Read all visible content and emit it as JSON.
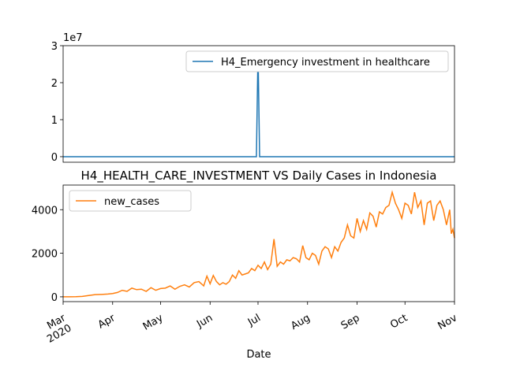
{
  "chart_data": [
    {
      "type": "line",
      "y_offset_label": "1e7",
      "x": [
        0,
        119,
        120,
        121,
        122,
        123,
        124,
        245
      ],
      "series": [
        {
          "name": "H4_Emergency investment in healthcare",
          "color": "#1f77b4",
          "values": [
            0,
            0,
            0,
            0,
            2.85,
            0,
            0,
            0
          ]
        }
      ],
      "xlim": [
        0,
        245
      ],
      "ylim": [
        -0.15,
        3.0
      ],
      "yticks": [
        0,
        1,
        2,
        3
      ],
      "legend": "upper right"
    },
    {
      "type": "line",
      "title": "H4_HEALTH_CARE_INVESTMENT VS Daily Cases in Indonesia",
      "x_label": "Date",
      "x": [
        0,
        4,
        8,
        12,
        16,
        20,
        24,
        28,
        31,
        34,
        37,
        40,
        43,
        46,
        49,
        52,
        55,
        58,
        61,
        64,
        67,
        70,
        73,
        76,
        79,
        82,
        85,
        88,
        90,
        92,
        94,
        96,
        98,
        100,
        102,
        104,
        106,
        108,
        110,
        112,
        114,
        116,
        118,
        120,
        122,
        124,
        126,
        128,
        130,
        132,
        134,
        136,
        138,
        140,
        142,
        144,
        146,
        148,
        150,
        152,
        154,
        156,
        158,
        160,
        162,
        164,
        166,
        168,
        170,
        172,
        174,
        176,
        178,
        180,
        182,
        184,
        186,
        188,
        190,
        192,
        194,
        196,
        198,
        200,
        202,
        204,
        206,
        208,
        210,
        212,
        214,
        216,
        218,
        220,
        222,
        224,
        226,
        228,
        230,
        232,
        234,
        236,
        238,
        240,
        242,
        243,
        244,
        245
      ],
      "series": [
        {
          "name": "new_cases",
          "color": "#ff7f0e",
          "values": [
            0,
            2,
            5,
            20,
            60,
            100,
            110,
            130,
            150,
            200,
            300,
            250,
            400,
            330,
            350,
            250,
            420,
            300,
            380,
            400,
            500,
            350,
            480,
            550,
            450,
            650,
            700,
            500,
            950,
            600,
            980,
            700,
            550,
            650,
            580,
            700,
            1000,
            850,
            1200,
            1000,
            1050,
            1100,
            1300,
            1200,
            1450,
            1300,
            1600,
            1250,
            1500,
            2650,
            1400,
            1600,
            1500,
            1700,
            1650,
            1800,
            1750,
            1600,
            2350,
            1800,
            1700,
            2000,
            1900,
            1500,
            2100,
            2300,
            2200,
            1800,
            2300,
            2100,
            2500,
            2700,
            3300,
            2800,
            2700,
            3600,
            3000,
            3500,
            3100,
            3850,
            3700,
            3200,
            3900,
            3800,
            4100,
            4200,
            4800,
            4300,
            4000,
            3600,
            4300,
            4200,
            3800,
            4800,
            4100,
            4400,
            3300,
            4300,
            4400,
            3500,
            4200,
            4400,
            4000,
            3300,
            4000,
            2900,
            3100,
            2700
          ]
        }
      ],
      "xlim": [
        0,
        245
      ],
      "xticks": [
        {
          "value": 0,
          "label": "Mar\n2020"
        },
        {
          "value": 31,
          "label": "Apr"
        },
        {
          "value": 61,
          "label": "May"
        },
        {
          "value": 92,
          "label": "Jun"
        },
        {
          "value": 122,
          "label": "Jul"
        },
        {
          "value": 153,
          "label": "Aug"
        },
        {
          "value": 184,
          "label": "Sep"
        },
        {
          "value": 214,
          "label": "Oct"
        },
        {
          "value": 245,
          "label": "Nov"
        }
      ],
      "ylim": [
        -220,
        5130
      ],
      "yticks": [
        0,
        2000,
        4000
      ],
      "legend": "upper left"
    }
  ]
}
